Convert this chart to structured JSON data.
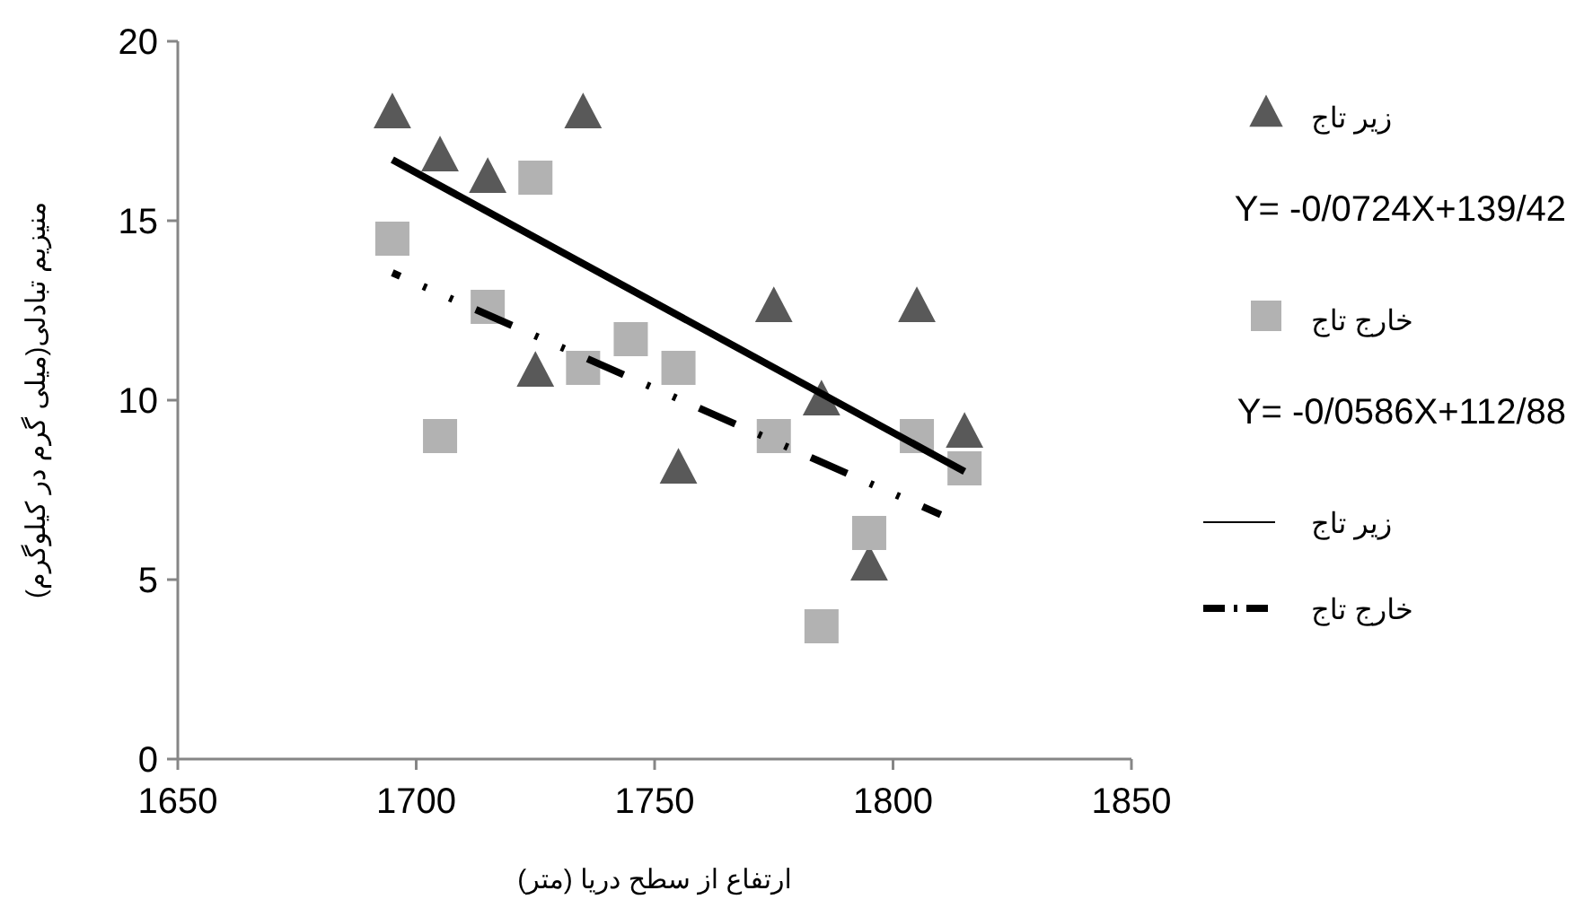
{
  "chart_data": {
    "type": "scatter",
    "xlabel": "ارتفاع از سطح دریا (متر)",
    "ylabel": "منیزیم تبادلی(میلی گرم در کیلوگرم)",
    "xlim": [
      1650,
      1850
    ],
    "xticks": [
      1650,
      1700,
      1750,
      1800,
      1850
    ],
    "ylim": [
      0,
      20
    ],
    "yticks": [
      0,
      5,
      10,
      15,
      20
    ],
    "grid": false,
    "legend": "right",
    "annotations": [
      "Y= -0/0724X+139/42",
      "Y= -0/0586X+112/88"
    ],
    "series": [
      {
        "name": "زیر تاج",
        "marker": "triangle",
        "color": "#595959",
        "x": [
          1695,
          1705,
          1715,
          1725,
          1735,
          1755,
          1775,
          1785,
          1795,
          1805,
          1815
        ],
        "values": [
          18,
          16.8,
          16.2,
          10.8,
          18,
          8.1,
          12.6,
          10,
          5.4,
          12.6,
          9.1
        ]
      },
      {
        "name": "خارج تاج",
        "marker": "square",
        "color": "#b2b2b2",
        "x": [
          1695,
          1705,
          1715,
          1725,
          1735,
          1745,
          1755,
          1775,
          1785,
          1795,
          1805,
          1815
        ],
        "values": [
          14.5,
          9,
          12.6,
          16.2,
          10.9,
          11.7,
          10.9,
          9,
          3.7,
          6.3,
          9,
          8.1
        ]
      },
      {
        "name": "زیر تاج",
        "type": "line",
        "line_style": "solid",
        "color": "#000000",
        "x": [
          1695,
          1815
        ],
        "values": [
          16.7,
          8.01
        ]
      },
      {
        "name": "خارج تاج",
        "type": "line",
        "line_style": "dashdot",
        "color": "#000000",
        "x": [
          1695,
          1810
        ],
        "values": [
          13.55,
          6.81
        ]
      }
    ]
  }
}
